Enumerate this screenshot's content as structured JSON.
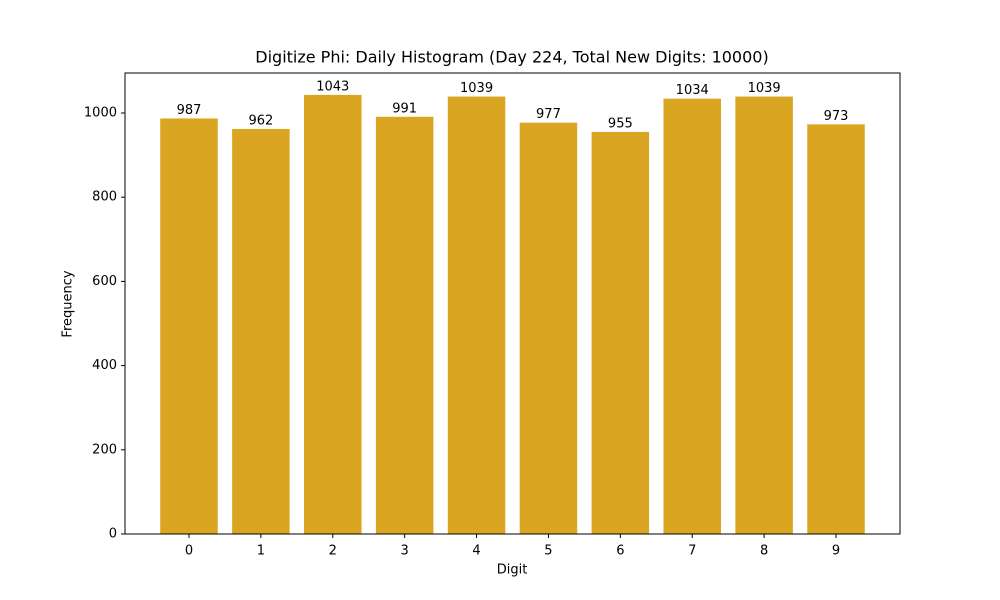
{
  "chart_data": {
    "type": "bar",
    "title": "Digitize Phi: Daily Histogram (Day 224, Total New Digits: 10000)",
    "x_label": "Digit",
    "y_label": "Frequency",
    "categories": [
      "0",
      "1",
      "2",
      "3",
      "4",
      "5",
      "6",
      "7",
      "8",
      "9"
    ],
    "values": [
      987,
      962,
      1043,
      991,
      1039,
      977,
      955,
      1034,
      1039,
      973
    ],
    "color": "#daa520",
    "ylim": [
      0,
      1095
    ],
    "yticks": [
      0,
      200,
      400,
      600,
      800,
      1000
    ]
  }
}
